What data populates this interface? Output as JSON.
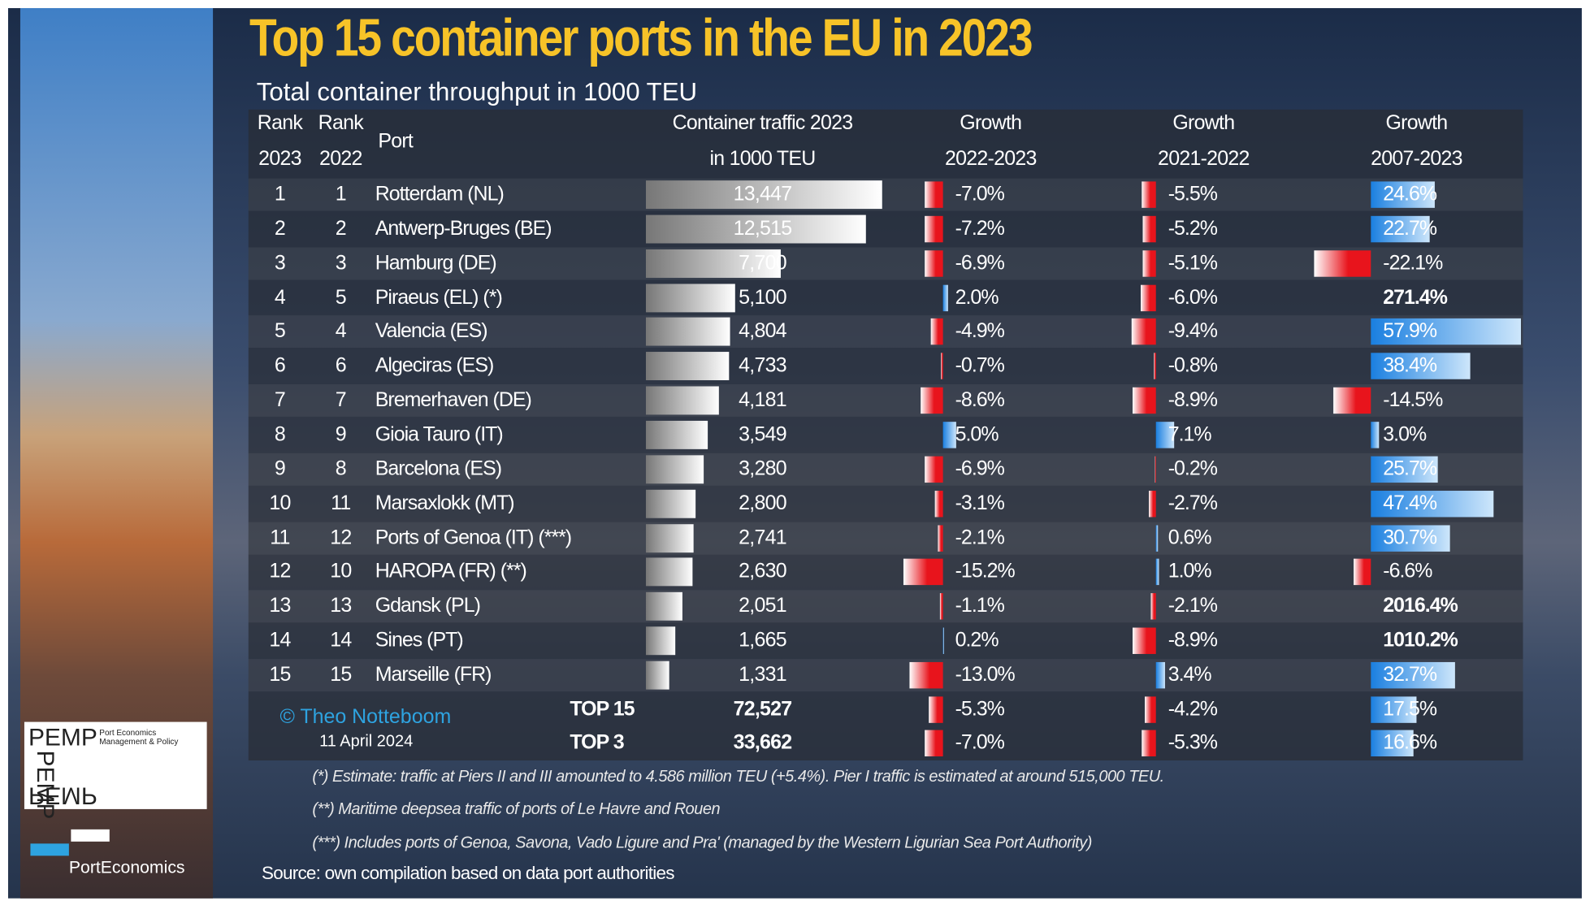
{
  "title": "Top 15 container ports in the EU in 2023",
  "subtitle": "Total container throughput in 1000 TEU",
  "header": [
    [
      "Rank",
      "2023"
    ],
    [
      "Rank",
      "2022"
    ],
    [
      "Port"
    ],
    [
      "Container traffic 2023",
      "in 1000 TEU"
    ],
    [
      "Growth",
      "2022-2023"
    ],
    [
      "Growth",
      "2021-2022"
    ],
    [
      "Growth",
      "2007-2023"
    ]
  ],
  "rows": [
    [
      1,
      1,
      "Rotterdam (NL)",
      "13,447",
      "-7.0%",
      "-5.5%",
      "24.6%"
    ],
    [
      2,
      2,
      "Antwerp-Bruges (BE)",
      "12,515",
      "-7.2%",
      "-5.2%",
      "22.7%"
    ],
    [
      3,
      3,
      "Hamburg (DE)",
      "7,700",
      "-6.9%",
      "-5.1%",
      "-22.1%"
    ],
    [
      4,
      5,
      "Piraeus (EL) (*)",
      "5,100",
      "2.0%",
      "-6.0%",
      "271.4%"
    ],
    [
      5,
      4,
      "Valencia (ES)",
      "4,804",
      "-4.9%",
      "-9.4%",
      "57.9%"
    ],
    [
      6,
      6,
      "Algeciras (ES)",
      "4,733",
      "-0.7%",
      "-0.8%",
      "38.4%"
    ],
    [
      7,
      7,
      "Bremerhaven (DE)",
      "4,181",
      "-8.6%",
      "-8.9%",
      "-14.5%"
    ],
    [
      8,
      9,
      "Gioia Tauro (IT)",
      "3,549",
      "5.0%",
      "7.1%",
      "3.0%"
    ],
    [
      9,
      8,
      "Barcelona (ES)",
      "3,280",
      "-6.9%",
      "-0.2%",
      "25.7%"
    ],
    [
      10,
      11,
      "Marsaxlokk (MT)",
      "2,800",
      "-3.1%",
      "-2.7%",
      "47.4%"
    ],
    [
      11,
      12,
      "Ports of Genoa (IT) (***)",
      "2,741",
      "-2.1%",
      "0.6%",
      "30.7%"
    ],
    [
      12,
      10,
      "HAROPA (FR) (**)",
      "2,630",
      "-15.2%",
      "1.0%",
      "-6.6%"
    ],
    [
      13,
      13,
      "Gdansk (PL)",
      "2,051",
      "-1.1%",
      "-2.1%",
      "2016.4%"
    ],
    [
      14,
      14,
      "Sines (PT)",
      "1,665",
      "0.2%",
      "-8.9%",
      "1010.2%"
    ],
    [
      15,
      15,
      "Marseille (FR)",
      "1,331",
      "-13.0%",
      "3.4%",
      "32.7%"
    ]
  ],
  "totals": [
    [
      "TOP 15",
      "72,527",
      "-5.3%",
      "-4.2%",
      "17.5%"
    ],
    [
      "TOP 3",
      "33,662",
      "-7.0%",
      "-5.3%",
      "16.6%"
    ]
  ],
  "credit": "© Theo Notteboom",
  "date": "11 April 2024",
  "notes": [
    "(*) Estimate: traffic at Piers II and III amounted to 4.586 million TEU (+5.4%). Pier I traffic is estimated at around 515,000 TEU.",
    "(**) Maritime deepsea traffic of ports of Le Havre and Rouen",
    "(***) Includes ports of Genoa, Savona, Vado Ligure and Pra' (managed by the Western Ligurian Sea Port Authority)"
  ],
  "source": "Source: own compilation based on data port authorities",
  "logo": {
    "mark": "PEMP",
    "tagline": "Port Economics Management & Policy",
    "brand": "PortEconomics"
  }
}
